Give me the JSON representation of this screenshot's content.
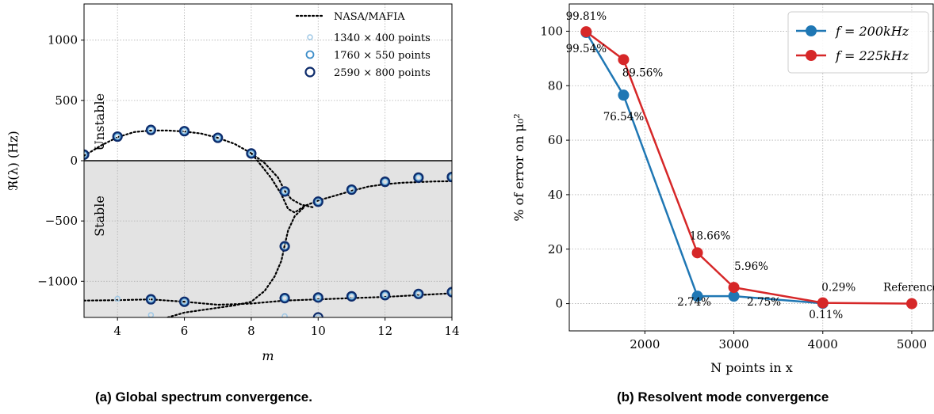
{
  "captions": {
    "a": "(a) Global spectrum convergence.",
    "b": "(b) Resolvent mode convergence"
  },
  "chart_data": [
    {
      "type": "scatter",
      "xlabel": "m",
      "ylabel": "ℜ(λ) (Hz)",
      "xlim": [
        3,
        14
      ],
      "ylim": [
        -1300,
        1300
      ],
      "xticks": [
        4,
        6,
        8,
        10,
        12,
        14
      ],
      "yticks": [
        -1000,
        -500,
        0,
        500,
        1000
      ],
      "xtick_labels": [
        "4",
        "6",
        "8",
        "10",
        "12",
        "14"
      ],
      "ytick_labels": [
        "−1000",
        "−500",
        "0",
        "500",
        "1000"
      ],
      "grid": true,
      "region_labels": {
        "unstable": "Unstable",
        "stable": "Stable"
      },
      "stable_shading": "#e3e3e3",
      "legend_position": "top-right",
      "reference": {
        "name": "NASA/MAFIA",
        "curves": [
          {
            "x": [
              3,
              3.5,
              4,
              4.5,
              5,
              5.5,
              6,
              6.5,
              7,
              7.5,
              8,
              8.3,
              8.6,
              8.9,
              9.1,
              9.3,
              9.6,
              10,
              10.5,
              11,
              11.5,
              12,
              12.5,
              13,
              13.5,
              14
            ],
            "y": [
              40,
              125,
              195,
              238,
              250,
              250,
              242,
              225,
              190,
              140,
              62,
              -40,
              -145,
              -280,
              -400,
              -430,
              -375,
              -330,
              -290,
              -250,
              -215,
              -195,
              -183,
              -177,
              -172,
              -170
            ]
          },
          {
            "x": [
              8,
              8.4,
              8.8,
              9.0,
              9.2,
              9.5,
              9.9
            ],
            "y": [
              62,
              -20,
              -140,
              -250,
              -320,
              -365,
              -390
            ]
          },
          {
            "x": [
              5.5,
              6,
              7,
              7.5,
              8,
              8.4,
              8.7,
              8.9,
              9.0,
              9.1,
              9.3,
              9.6
            ],
            "y": [
              -1300,
              -1260,
              -1220,
              -1200,
              -1170,
              -1080,
              -960,
              -830,
              -700,
              -580,
              -460,
              -380
            ]
          },
          {
            "x": [
              3,
              4,
              5,
              6,
              7,
              8,
              9,
              10,
              11,
              12,
              13,
              14
            ],
            "y": [
              -1160,
              -1157,
              -1150,
              -1170,
              -1195,
              -1185,
              -1160,
              -1150,
              -1140,
              -1130,
              -1115,
              -1100
            ]
          }
        ]
      },
      "series": [
        {
          "name": "1340 × 400 points",
          "color": "#9fc8e6",
          "x": [
            3,
            4,
            5,
            6,
            7,
            8,
            9,
            10,
            11,
            12,
            13,
            14,
            4,
            5,
            6,
            9,
            10,
            11,
            12,
            13,
            14,
            5,
            9,
            10
          ],
          "y": [
            50,
            200,
            255,
            245,
            190,
            60,
            -255,
            -340,
            -240,
            -175,
            -140,
            -135,
            -1145,
            -1150,
            -1170,
            -1140,
            -1135,
            -1125,
            -1115,
            -1105,
            -1090,
            -1280,
            -1290,
            -1300
          ]
        },
        {
          "name": "1760 × 550 points",
          "color": "#3e8ec9",
          "x": [
            3,
            4,
            5,
            6,
            7,
            8,
            9,
            10,
            11,
            12,
            13,
            14,
            9,
            5,
            6,
            9,
            10,
            11,
            12,
            13,
            14
          ],
          "y": [
            50,
            200,
            255,
            245,
            190,
            60,
            -255,
            -340,
            -240,
            -175,
            -140,
            -135,
            -710,
            -1150,
            -1170,
            -1140,
            -1135,
            -1125,
            -1115,
            -1105,
            -1090
          ]
        },
        {
          "name": "2590 × 800 points",
          "color": "#0d2b6b",
          "x": [
            3,
            4,
            5,
            6,
            7,
            8,
            9,
            10,
            11,
            12,
            13,
            14,
            9,
            5,
            6,
            9,
            10,
            11,
            12,
            13,
            14,
            10
          ],
          "y": [
            50,
            200,
            255,
            245,
            190,
            60,
            -255,
            -340,
            -240,
            -175,
            -140,
            -135,
            -710,
            -1150,
            -1170,
            -1140,
            -1135,
            -1125,
            -1115,
            -1105,
            -1090,
            -1300
          ]
        }
      ]
    },
    {
      "type": "line",
      "xlabel": "N points in x",
      "ylabel": "% of error on μ₀²",
      "xlim": [
        1150,
        5250
      ],
      "ylim": [
        -10,
        110
      ],
      "xticks": [
        2000,
        3000,
        4000,
        5000
      ],
      "yticks": [
        0,
        20,
        40,
        60,
        80,
        100
      ],
      "xtick_labels": [
        "2000",
        "3000",
        "4000",
        "5000"
      ],
      "ytick_labels": [
        "0",
        "20",
        "40",
        "60",
        "80",
        "100"
      ],
      "grid": true,
      "legend_position": "top-right",
      "series": [
        {
          "name": "f = 200kHz",
          "color": "#1f77b4",
          "x": [
            1340,
            1760,
            2590,
            3000,
            4000
          ],
          "y": [
            99.54,
            76.54,
            2.74,
            2.75,
            0.11
          ]
        },
        {
          "name": "f = 225kHz",
          "color": "#d62728",
          "x": [
            1340,
            1760,
            2590,
            3000,
            4000,
            5000
          ],
          "y": [
            99.81,
            89.56,
            18.66,
            5.96,
            0.29,
            0
          ]
        }
      ],
      "annotations": [
        {
          "text": "99.81%",
          "x": 1340,
          "y": 99.81
        },
        {
          "text": "99.54%",
          "x": 1340,
          "y": 99.54
        },
        {
          "text": "89.56%",
          "x": 1760,
          "y": 89.56
        },
        {
          "text": "76.54%",
          "x": 1760,
          "y": 76.54
        },
        {
          "text": "18.66%",
          "x": 2590,
          "y": 18.66
        },
        {
          "text": "5.96%",
          "x": 3000,
          "y": 5.96
        },
        {
          "text": "2.74%",
          "x": 2590,
          "y": 2.74
        },
        {
          "text": "2.75%",
          "x": 3000,
          "y": 2.75
        },
        {
          "text": "0.29%",
          "x": 4000,
          "y": 0.29
        },
        {
          "text": "0.11%",
          "x": 4000,
          "y": 0.11
        },
        {
          "text": "Reference",
          "x": 5000,
          "y": 0
        }
      ]
    }
  ]
}
